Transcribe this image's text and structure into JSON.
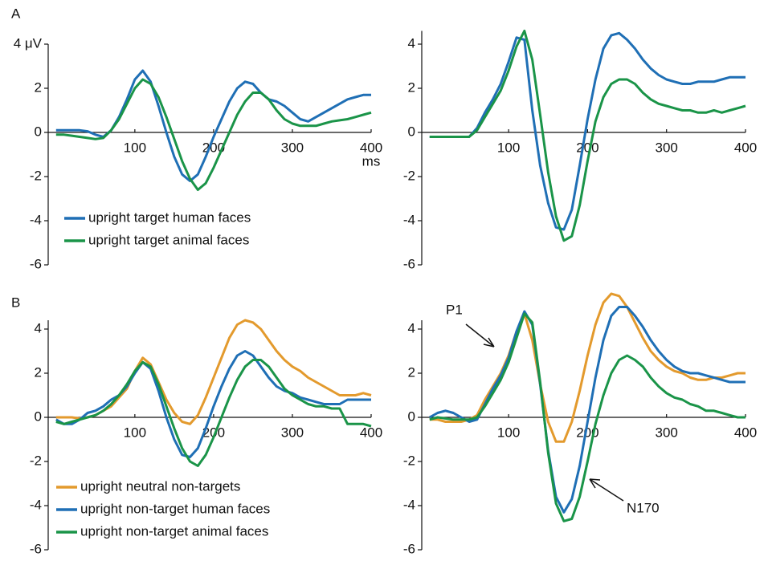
{
  "chart_data": [
    {
      "type": "line",
      "panel_label": "A",
      "xlabel": "ms",
      "x": [
        0,
        10,
        20,
        30,
        40,
        50,
        60,
        70,
        80,
        90,
        100,
        110,
        120,
        130,
        140,
        150,
        160,
        170,
        180,
        190,
        200,
        210,
        220,
        230,
        240,
        250,
        260,
        270,
        280,
        290,
        300,
        310,
        320,
        330,
        340,
        350,
        360,
        370,
        380,
        390,
        400
      ],
      "xlim": [
        -10,
        400
      ],
      "xticks": [
        100,
        200,
        300,
        400
      ],
      "ylim": [
        -6,
        4
      ],
      "yticks": [
        {
          "value": 4,
          "label": "4 μV"
        },
        2,
        0,
        -2,
        -4,
        -6
      ],
      "legend": true,
      "series": [
        {
          "name": "upright target human faces",
          "color": "#1f6fb5",
          "values": [
            0.1,
            0.1,
            0.1,
            0.1,
            0.05,
            -0.1,
            -0.2,
            0.1,
            0.7,
            1.5,
            2.4,
            2.8,
            2.3,
            1.2,
            0,
            -1.1,
            -1.9,
            -2.2,
            -1.9,
            -1.1,
            -0.2,
            0.6,
            1.4,
            2.0,
            2.3,
            2.2,
            1.8,
            1.5,
            1.4,
            1.2,
            0.9,
            0.6,
            0.5,
            0.7,
            0.9,
            1.1,
            1.3,
            1.5,
            1.6,
            1.7,
            1.7
          ]
        },
        {
          "name": "upright target animal faces",
          "color": "#1a9448",
          "values": [
            -0.1,
            -0.1,
            -0.15,
            -0.2,
            -0.25,
            -0.3,
            -0.25,
            0.1,
            0.6,
            1.3,
            2.0,
            2.4,
            2.2,
            1.6,
            0.7,
            -0.3,
            -1.3,
            -2.1,
            -2.6,
            -2.3,
            -1.6,
            -0.8,
            0.0,
            0.8,
            1.4,
            1.8,
            1.8,
            1.5,
            1.0,
            0.6,
            0.4,
            0.3,
            0.3,
            0.3,
            0.4,
            0.5,
            0.55,
            0.6,
            0.7,
            0.8,
            0.9
          ]
        }
      ]
    },
    {
      "type": "line",
      "x": [
        0,
        10,
        20,
        30,
        40,
        50,
        60,
        70,
        80,
        90,
        100,
        110,
        120,
        130,
        140,
        150,
        160,
        170,
        180,
        190,
        200,
        210,
        220,
        230,
        240,
        250,
        260,
        270,
        280,
        290,
        300,
        310,
        320,
        330,
        340,
        350,
        360,
        370,
        380,
        390,
        400
      ],
      "xlim": [
        -10,
        400
      ],
      "xticks": [
        100,
        200,
        300,
        400
      ],
      "ylim": [
        -6,
        4.6
      ],
      "yticks": [
        4,
        2,
        0,
        -2,
        -4,
        -6
      ],
      "legend": false,
      "series": [
        {
          "color": "#1f6fb5",
          "values": [
            -0.2,
            -0.2,
            -0.2,
            -0.2,
            -0.2,
            -0.2,
            0.2,
            0.9,
            1.5,
            2.2,
            3.2,
            4.3,
            4.2,
            1.0,
            -1.5,
            -3.2,
            -4.3,
            -4.4,
            -3.5,
            -1.5,
            0.6,
            2.4,
            3.8,
            4.4,
            4.5,
            4.2,
            3.8,
            3.3,
            2.9,
            2.6,
            2.4,
            2.3,
            2.2,
            2.2,
            2.3,
            2.3,
            2.3,
            2.4,
            2.5,
            2.5,
            2.5
          ]
        },
        {
          "color": "#1a9448",
          "values": [
            -0.2,
            -0.2,
            -0.2,
            -0.2,
            -0.2,
            -0.2,
            0.1,
            0.7,
            1.3,
            1.9,
            2.8,
            3.9,
            4.6,
            3.3,
            0.8,
            -1.8,
            -3.8,
            -4.9,
            -4.7,
            -3.3,
            -1.3,
            0.5,
            1.6,
            2.2,
            2.4,
            2.4,
            2.2,
            1.8,
            1.5,
            1.3,
            1.2,
            1.1,
            1.0,
            1.0,
            0.9,
            0.9,
            1.0,
            0.9,
            1.0,
            1.1,
            1.2
          ]
        }
      ]
    },
    {
      "type": "line",
      "panel_label": "B",
      "x": [
        0,
        10,
        20,
        30,
        40,
        50,
        60,
        70,
        80,
        90,
        100,
        110,
        120,
        130,
        140,
        150,
        160,
        170,
        180,
        190,
        200,
        210,
        220,
        230,
        240,
        250,
        260,
        270,
        280,
        290,
        300,
        310,
        320,
        330,
        340,
        350,
        360,
        370,
        380,
        390,
        400
      ],
      "xlim": [
        -10,
        400
      ],
      "xticks": [
        100,
        200,
        300,
        400
      ],
      "ylim": [
        -6,
        4.4
      ],
      "yticks": [
        4,
        2,
        0,
        -2,
        -4,
        -6
      ],
      "legend": true,
      "series": [
        {
          "name": "upright neutral non-targets",
          "color": "#e39a2d",
          "values": [
            0,
            0,
            0,
            -0.05,
            0,
            0.1,
            0.3,
            0.5,
            0.9,
            1.3,
            2.1,
            2.7,
            2.4,
            1.6,
            0.8,
            0.2,
            -0.2,
            -0.3,
            0.1,
            0.9,
            1.8,
            2.7,
            3.6,
            4.2,
            4.4,
            4.3,
            4.0,
            3.5,
            3.0,
            2.6,
            2.3,
            2.1,
            1.8,
            1.6,
            1.4,
            1.2,
            1.0,
            1.0,
            1.0,
            1.1,
            1.0
          ]
        },
        {
          "name": "upright non-target human faces",
          "color": "#1f6fb5",
          "values": [
            -0.1,
            -0.3,
            -0.3,
            -0.1,
            0.2,
            0.3,
            0.5,
            0.8,
            1.0,
            1.4,
            2.0,
            2.5,
            2.2,
            1.2,
            0.0,
            -1.0,
            -1.7,
            -1.8,
            -1.4,
            -0.5,
            0.5,
            1.4,
            2.2,
            2.8,
            3.0,
            2.8,
            2.3,
            1.8,
            1.4,
            1.2,
            1.1,
            0.9,
            0.8,
            0.7,
            0.6,
            0.6,
            0.6,
            0.8,
            0.8,
            0.8,
            0.8
          ]
        },
        {
          "name": "upright non-target animal faces",
          "color": "#1a9448",
          "values": [
            -0.2,
            -0.3,
            -0.2,
            -0.1,
            0,
            0.1,
            0.3,
            0.6,
            1.0,
            1.5,
            2.1,
            2.5,
            2.3,
            1.5,
            0.5,
            -0.5,
            -1.4,
            -2.0,
            -2.2,
            -1.7,
            -0.9,
            0.0,
            0.9,
            1.7,
            2.3,
            2.6,
            2.6,
            2.3,
            1.8,
            1.3,
            1.0,
            0.8,
            0.6,
            0.5,
            0.5,
            0.4,
            0.4,
            -0.3,
            -0.3,
            -0.3,
            -0.4
          ]
        }
      ]
    },
    {
      "type": "line",
      "x": [
        0,
        10,
        20,
        30,
        40,
        50,
        60,
        70,
        80,
        90,
        100,
        110,
        120,
        130,
        140,
        150,
        160,
        170,
        180,
        190,
        200,
        210,
        220,
        230,
        240,
        250,
        260,
        270,
        280,
        290,
        300,
        310,
        320,
        330,
        340,
        350,
        360,
        370,
        380,
        390,
        400
      ],
      "xlim": [
        -10,
        400
      ],
      "xticks": [
        100,
        200,
        300,
        400
      ],
      "ylim": [
        -6,
        4.4
      ],
      "yticks": [
        4,
        2,
        0,
        -2,
        -4,
        -6
      ],
      "legend": false,
      "annotations": [
        {
          "text": "P1"
        },
        {
          "text": "N170"
        }
      ],
      "series": [
        {
          "color": "#e39a2d",
          "values": [
            -0.1,
            -0.1,
            -0.2,
            -0.2,
            -0.2,
            -0.1,
            0.1,
            0.8,
            1.4,
            2.0,
            2.8,
            3.9,
            4.7,
            3.5,
            1.5,
            -0.2,
            -1.1,
            -1.1,
            -0.2,
            1.2,
            2.8,
            4.2,
            5.2,
            5.6,
            5.5,
            5.0,
            4.3,
            3.6,
            3.0,
            2.6,
            2.3,
            2.1,
            2.0,
            1.8,
            1.7,
            1.7,
            1.8,
            1.8,
            1.9,
            2.0,
            2.0
          ]
        },
        {
          "color": "#1f6fb5",
          "values": [
            0,
            0.2,
            0.3,
            0.2,
            0,
            -0.2,
            -0.1,
            0.6,
            1.3,
            1.9,
            2.7,
            3.9,
            4.8,
            4.2,
            1.5,
            -1.5,
            -3.6,
            -4.3,
            -3.7,
            -2.2,
            -0.2,
            1.8,
            3.5,
            4.6,
            5.0,
            5.0,
            4.6,
            4.1,
            3.5,
            3.0,
            2.6,
            2.3,
            2.1,
            2.0,
            2.0,
            1.9,
            1.8,
            1.7,
            1.6,
            1.6,
            1.6
          ]
        },
        {
          "color": "#1a9448",
          "values": [
            -0.1,
            0,
            -0.05,
            -0.1,
            -0.1,
            -0.1,
            0,
            0.5,
            1.1,
            1.7,
            2.5,
            3.6,
            4.7,
            4.3,
            1.6,
            -1.6,
            -3.9,
            -4.7,
            -4.6,
            -3.6,
            -2.0,
            -0.3,
            1.0,
            2.0,
            2.6,
            2.8,
            2.6,
            2.3,
            1.8,
            1.4,
            1.1,
            0.9,
            0.8,
            0.6,
            0.5,
            0.3,
            0.3,
            0.2,
            0.1,
            0,
            0
          ]
        }
      ]
    }
  ]
}
